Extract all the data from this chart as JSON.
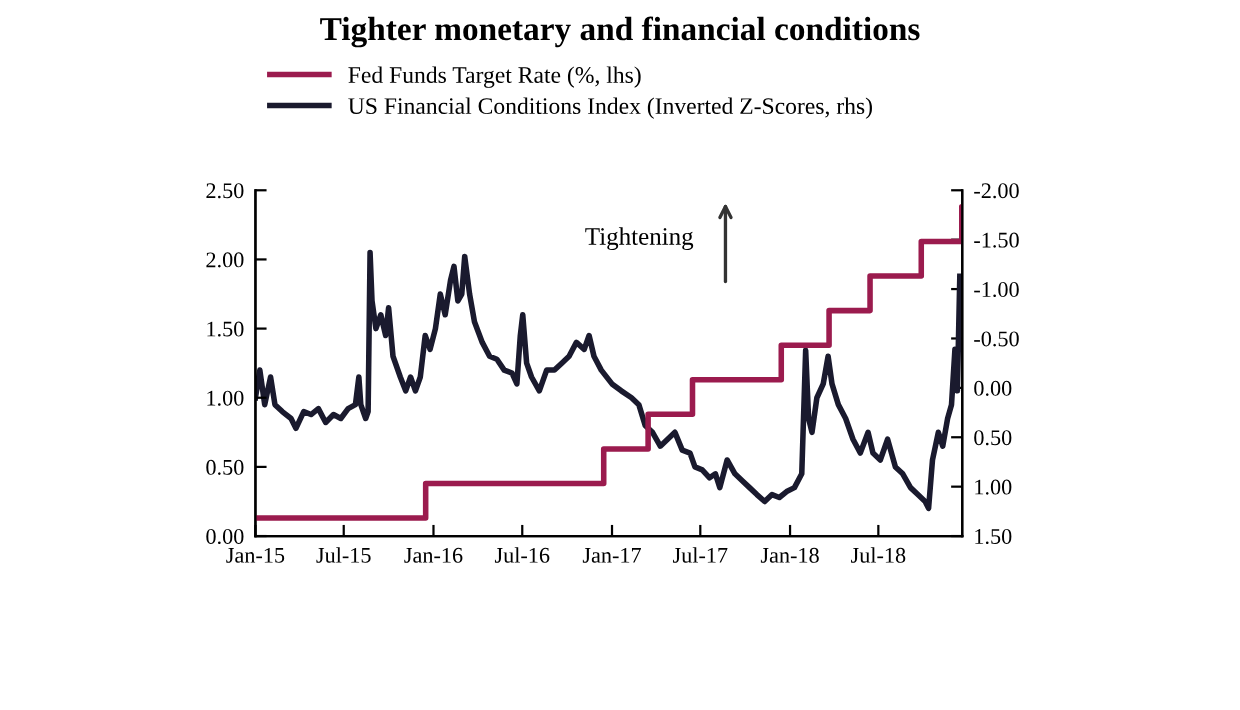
{
  "chart_data": {
    "type": "line",
    "title": "Tighter monetary and financial conditions",
    "legend": "top left",
    "grid": false,
    "annotations": [
      "Tightening"
    ],
    "xlim": [
      "2015-01-01",
      "2018-12-20"
    ],
    "xticks": [
      {
        "value": "2015-01-01",
        "label": "Jan-15"
      },
      {
        "value": "2015-07-01",
        "label": "Jul-15"
      },
      {
        "value": "2016-01-01",
        "label": "Jan-16"
      },
      {
        "value": "2016-07-01",
        "label": "Jul-16"
      },
      {
        "value": "2017-01-01",
        "label": "Jan-17"
      },
      {
        "value": "2017-07-01",
        "label": "Jul-17"
      },
      {
        "value": "2018-01-01",
        "label": "Jan-18"
      },
      {
        "value": "2018-07-01",
        "label": "Jul-18"
      }
    ],
    "ylim": [
      0,
      2.5
    ],
    "yticks": [
      {
        "value": 0,
        "label": "0.00"
      },
      {
        "value": 0.5,
        "label": "0.50"
      },
      {
        "value": 1,
        "label": "1.00"
      },
      {
        "value": 1.5,
        "label": "1.50"
      },
      {
        "value": 2,
        "label": "2.00"
      },
      {
        "value": 2.5,
        "label": "2.50"
      }
    ],
    "y2lim": [
      1.5,
      -2
    ],
    "y2ticks": [
      {
        "value": -2,
        "label": "-2.00"
      },
      {
        "value": -1.5,
        "label": "-1.50"
      },
      {
        "value": -1,
        "label": "-1.00"
      },
      {
        "value": -0.5,
        "label": "-0.50"
      },
      {
        "value": 0,
        "label": "0.00"
      },
      {
        "value": 0.5,
        "label": "0.50"
      },
      {
        "value": 1,
        "label": "1.00"
      },
      {
        "value": 1.5,
        "label": "1.50"
      }
    ],
    "series": [
      {
        "name": "Fed Funds Target Rate (%, lhs)",
        "type": "step",
        "color": "#9b1b4e",
        "x": [
          "2015-01-01",
          "2015-12-16",
          "2016-12-15",
          "2017-03-16",
          "2017-06-15",
          "2017-12-14",
          "2018-03-22",
          "2018-06-14",
          "2018-09-27",
          "2018-12-19",
          "2018-12-20"
        ],
        "values": [
          0.13,
          0.38,
          0.63,
          0.88,
          1.13,
          1.38,
          1.63,
          1.88,
          2.13,
          2.38,
          2.38
        ]
      },
      {
        "name": "US Financial Conditions Index (Inverted Z-Scores, rhs)",
        "axis": "y2",
        "color": "#1a1a2e",
        "x": [
          "2015-01-01",
          "2015-01-10",
          "2015-01-20",
          "2015-02-01",
          "2015-02-10",
          "2015-02-25",
          "2015-03-15",
          "2015-03-25",
          "2015-04-10",
          "2015-04-25",
          "2015-05-10",
          "2015-05-25",
          "2015-06-10",
          "2015-06-25",
          "2015-07-10",
          "2015-07-25",
          "2015-08-01",
          "2015-08-05",
          "2015-08-15",
          "2015-08-20",
          "2015-08-24",
          "2015-08-28",
          "2015-09-05",
          "2015-09-15",
          "2015-09-25",
          "2015-10-01",
          "2015-10-10",
          "2015-10-25",
          "2015-11-05",
          "2015-11-15",
          "2015-11-25",
          "2015-12-05",
          "2015-12-15",
          "2015-12-25",
          "2016-01-05",
          "2016-01-15",
          "2016-01-25",
          "2016-02-05",
          "2016-02-12",
          "2016-02-20",
          "2016-02-28",
          "2016-03-05",
          "2016-03-15",
          "2016-03-25",
          "2016-04-10",
          "2016-04-25",
          "2016-05-10",
          "2016-05-25",
          "2016-06-10",
          "2016-06-20",
          "2016-06-27",
          "2016-07-02",
          "2016-07-10",
          "2016-07-20",
          "2016-08-05",
          "2016-08-20",
          "2016-09-05",
          "2016-09-20",
          "2016-10-05",
          "2016-10-20",
          "2016-11-05",
          "2016-11-15",
          "2016-11-25",
          "2016-12-10",
          "2017-01-01",
          "2017-01-20",
          "2017-02-10",
          "2017-02-25",
          "2017-03-10",
          "2017-03-25",
          "2017-04-10",
          "2017-04-25",
          "2017-05-10",
          "2017-05-25",
          "2017-06-10",
          "2017-06-20",
          "2017-07-05",
          "2017-07-20",
          "2017-08-01",
          "2017-08-10",
          "2017-08-25",
          "2017-09-10",
          "2017-09-25",
          "2017-10-10",
          "2017-10-25",
          "2017-11-10",
          "2017-11-25",
          "2017-12-10",
          "2017-12-25",
          "2018-01-10",
          "2018-01-25",
          "2018-02-02",
          "2018-02-08",
          "2018-02-15",
          "2018-02-25",
          "2018-03-10",
          "2018-03-20",
          "2018-03-28",
          "2018-04-10",
          "2018-04-25",
          "2018-05-10",
          "2018-05-25",
          "2018-06-10",
          "2018-06-20",
          "2018-07-05",
          "2018-07-20",
          "2018-08-05",
          "2018-08-20",
          "2018-09-05",
          "2018-09-20",
          "2018-10-05",
          "2018-10-12",
          "2018-10-20",
          "2018-11-01",
          "2018-11-10",
          "2018-11-20",
          "2018-11-28",
          "2018-12-05",
          "2018-12-10",
          "2018-12-15"
        ],
        "values": [
          0.1,
          -0.18,
          0.17,
          -0.11,
          0.17,
          0.24,
          0.31,
          0.41,
          0.24,
          0.27,
          0.21,
          0.35,
          0.27,
          0.31,
          0.21,
          0.17,
          -0.11,
          0.17,
          0.31,
          0.24,
          -1.37,
          -0.88,
          -0.6,
          -0.74,
          -0.53,
          -0.81,
          -0.32,
          -0.11,
          0.03,
          -0.11,
          0.03,
          -0.11,
          -0.53,
          -0.39,
          -0.6,
          -0.95,
          -0.74,
          -1.09,
          -1.23,
          -0.88,
          -0.95,
          -1.33,
          -0.95,
          -0.67,
          -0.46,
          -0.32,
          -0.29,
          -0.18,
          -0.15,
          -0.04,
          -0.53,
          -0.74,
          -0.25,
          -0.11,
          0.03,
          -0.18,
          -0.18,
          -0.25,
          -0.32,
          -0.46,
          -0.39,
          -0.53,
          -0.32,
          -0.18,
          -0.04,
          0.03,
          0.1,
          0.17,
          0.38,
          0.45,
          0.59,
          0.52,
          0.45,
          0.63,
          0.66,
          0.8,
          0.83,
          0.91,
          0.87,
          1.01,
          0.73,
          0.87,
          0.94,
          1.01,
          1.08,
          1.15,
          1.08,
          1.11,
          1.05,
          1.01,
          0.87,
          -0.38,
          0.31,
          0.45,
          0.1,
          -0.04,
          -0.32,
          -0.04,
          0.17,
          0.31,
          0.52,
          0.66,
          0.45,
          0.66,
          0.73,
          0.52,
          0.8,
          0.87,
          1.01,
          1.08,
          1.15,
          1.22,
          0.73,
          0.45,
          0.59,
          0.31,
          0.17,
          -0.39,
          0.03,
          -1.13
        ]
      }
    ]
  }
}
